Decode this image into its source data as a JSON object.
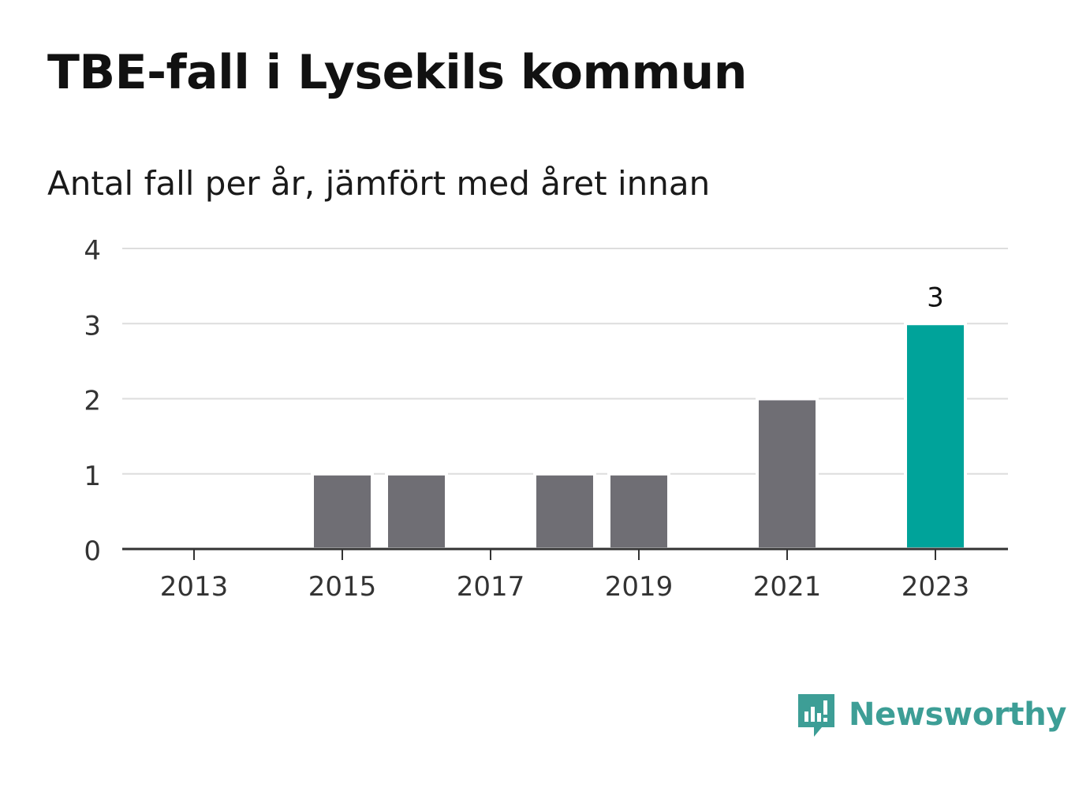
{
  "header": {
    "title": "TBE-fall i Lysekils kommun",
    "subtitle": "Antal fall per år, jämfört med året innan"
  },
  "brand": {
    "name": "Newsworthy",
    "icon": "newsworthy-logo-icon",
    "color": "#3d9e96"
  },
  "colors": {
    "bar_default": "#6f6e74",
    "bar_highlight": "#00a39a",
    "grid": "#dddddd",
    "axis": "#333333"
  },
  "chart_data": {
    "type": "bar",
    "categories": [
      "2013",
      "2014",
      "2015",
      "2016",
      "2017",
      "2018",
      "2019",
      "2020",
      "2021",
      "2022",
      "2023"
    ],
    "values": [
      0,
      0,
      1,
      1,
      0,
      1,
      1,
      0,
      2,
      0,
      3
    ],
    "highlight_index": 10,
    "data_labels": [
      {
        "index": 10,
        "text": "3"
      }
    ],
    "x_tick_labels": [
      "2013",
      "2015",
      "2017",
      "2019",
      "2021",
      "2023"
    ],
    "y_ticks": [
      "0",
      "1",
      "2",
      "3",
      "4"
    ],
    "ylim": [
      0,
      4
    ],
    "grid": true,
    "legend": false
  }
}
